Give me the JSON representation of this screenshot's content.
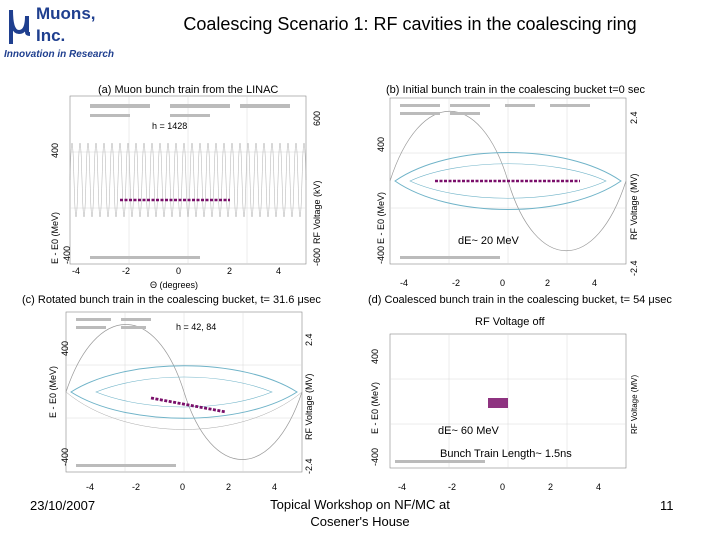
{
  "logo": {
    "line1": "Muons,",
    "line2": "Inc.",
    "tagline": "Innovation in Research"
  },
  "slide_title": "Coalescing Scenario 1: RF cavities in the coalescing ring",
  "panel_a": {
    "caption": "(a) Muon bunch train from the LINAC",
    "harmonic": "h = 1428",
    "ylabel": "E - E0 (MeV)",
    "y2label": "RF Voltage (kV)",
    "ytick_top": "400",
    "ytick_bottom": "-400",
    "y2tick_top": "600",
    "y2tick_bottom": "-600",
    "xticks": [
      "-4",
      "-2",
      "0",
      "2",
      "4"
    ],
    "xlabel": "Θ (degrees)"
  },
  "panel_b": {
    "caption": "(b) Initial bunch train in the coalescing bucket t=0 sec",
    "ylabel": "E - E0 (MeV)",
    "y2label": "RF Voltage (MV)",
    "ytick_top": "400",
    "ytick_bottom": "-400",
    "y2tick_top": "2.4",
    "y2tick_bottom": "-2.4",
    "xticks": [
      "-4",
      "-2",
      "0",
      "2",
      "4"
    ],
    "annotation": "dE~ 20 MeV"
  },
  "panel_c": {
    "caption": "(c) Rotated bunch train in the coalescing bucket, t= 31.6 μsec",
    "harmonic": "h = 42, 84",
    "ylabel": "E - E0 (MeV)",
    "y2label": "RF Voltage (MV)",
    "ytick_top": "400",
    "ytick_bottom": "-400",
    "y2tick_top": "2.4",
    "y2tick_bottom": "-2.4",
    "xticks": [
      "-4",
      "-2",
      "0",
      "2",
      "4"
    ]
  },
  "panel_d": {
    "caption": "(d) Coalesced bunch train in the coalescing bucket, t= 54 μsec",
    "status": "RF Voltage off",
    "ylabel": "E - E0 (MeV)",
    "y2label": "RF Voltage (MV)",
    "ytick_top": "400",
    "ytick_bottom": "-400",
    "xticks": [
      "-4",
      "-2",
      "0",
      "2",
      "4"
    ],
    "annotation1": "dE~ 60 MeV",
    "annotation2": "Bunch Train Length~ 1.5ns"
  },
  "footer": {
    "date": "23/10/2007",
    "venue_line1": "Topical Workshop on NF/MC at",
    "venue_line2": "Cosener's House",
    "page": "11"
  },
  "colors": {
    "brand": "#1f3f8f",
    "bunch": "#7a0f6a",
    "sine": "#999999",
    "bucket": "#6fb3c8"
  }
}
